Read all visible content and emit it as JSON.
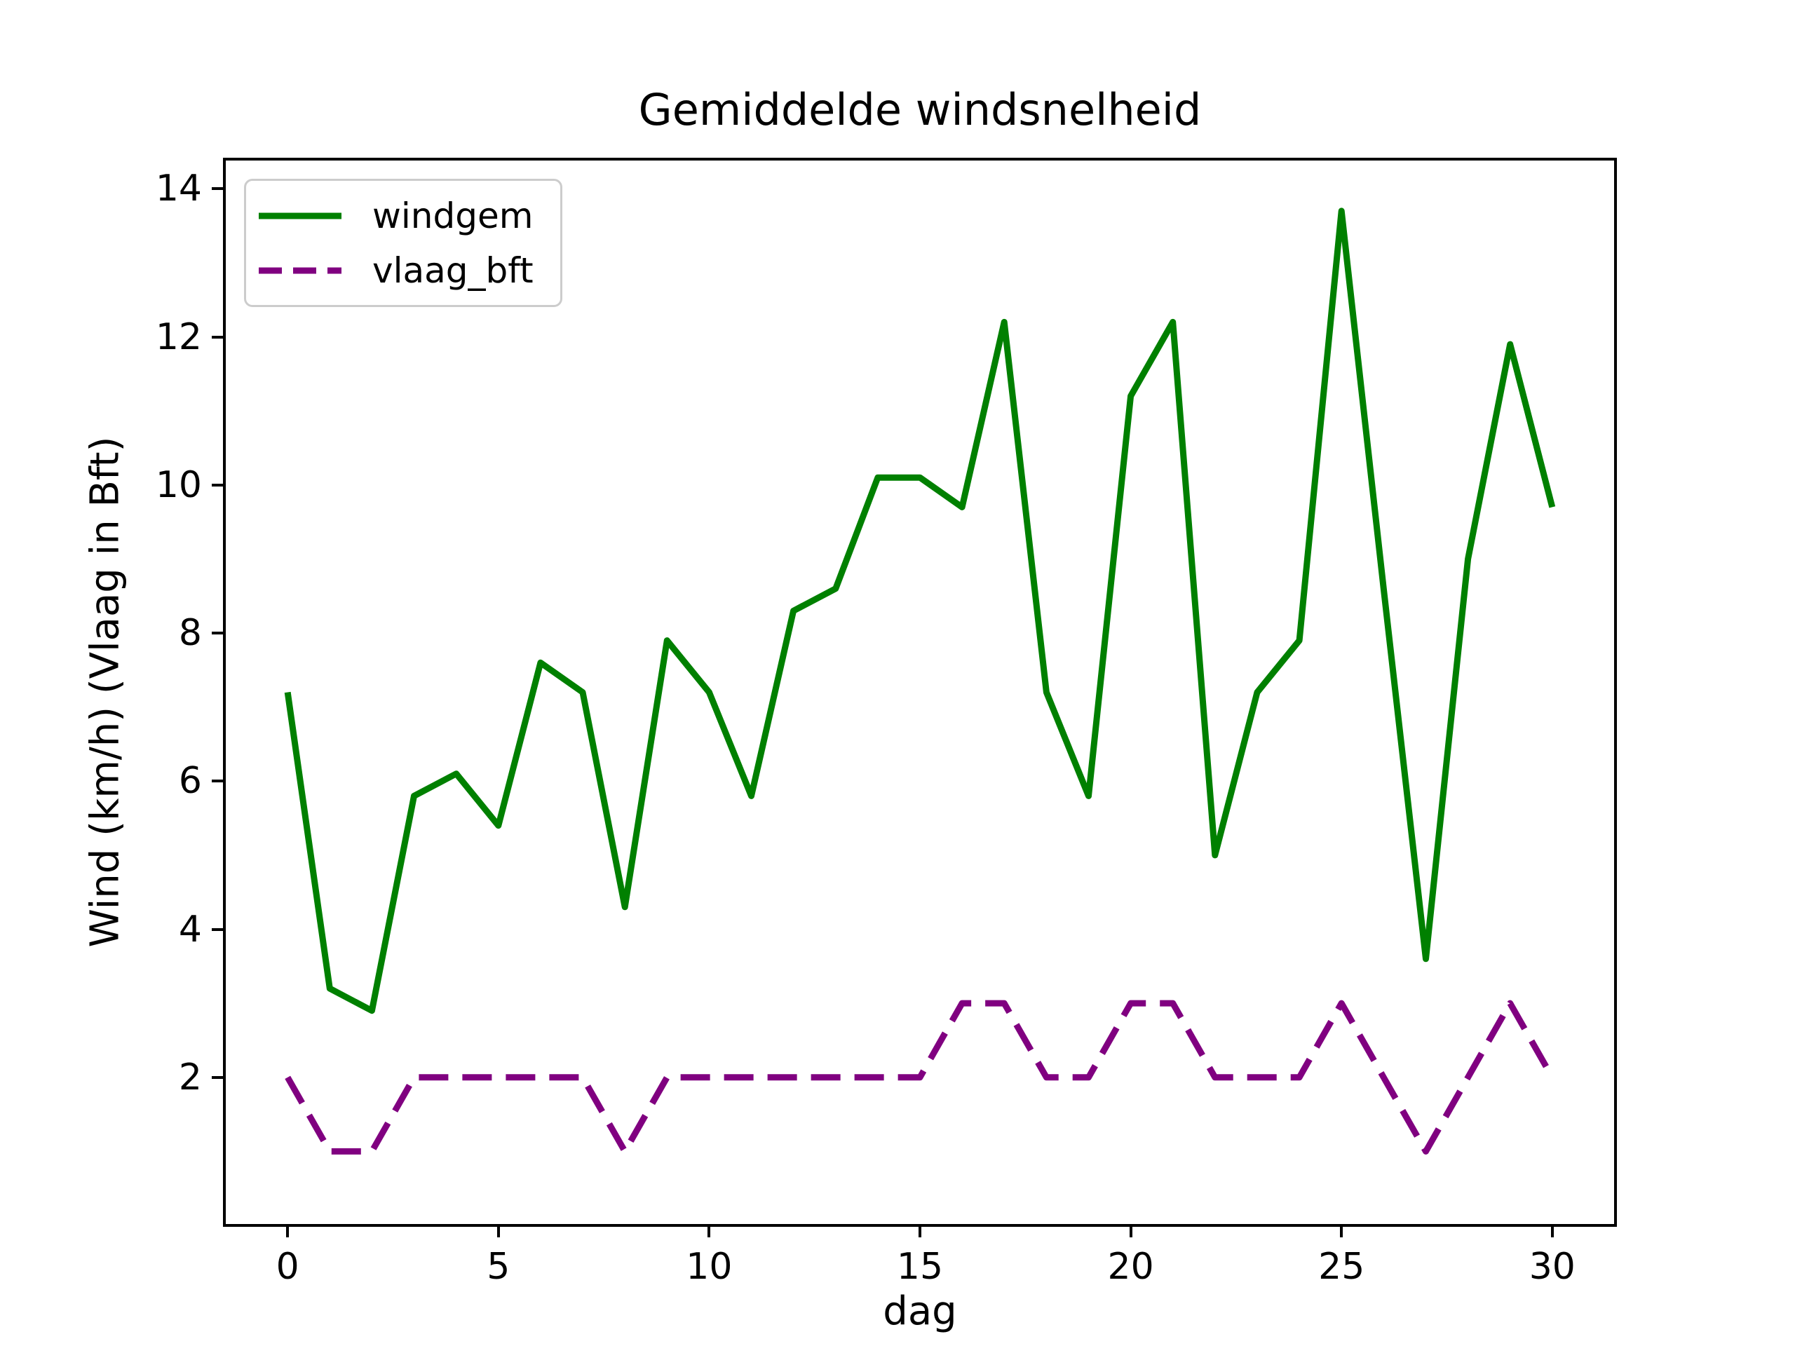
{
  "title": "Gemiddelde windsnelheid",
  "legend": {
    "items": [
      {
        "label": "windgem",
        "color": "#008000",
        "style": "solid"
      },
      {
        "label": "vlaag_bft",
        "color": "#800080",
        "style": "dashed"
      }
    ]
  },
  "axes": {
    "xlabel": "dag",
    "ylabel": "Wind (km/h) (Vlaag in Bft)",
    "x_ticks": [
      0,
      5,
      10,
      15,
      20,
      25,
      30
    ],
    "y_ticks": [
      2,
      4,
      6,
      8,
      10,
      12,
      14
    ],
    "xlim": [
      -1.5,
      31.5
    ],
    "ylim": [
      0,
      14.4
    ]
  },
  "chart_data": {
    "type": "line",
    "title": "Gemiddelde windsnelheid",
    "xlabel": "dag",
    "ylabel": "Wind (km/h) (Vlaag in Bft)",
    "xlim": [
      -1.5,
      31.5
    ],
    "ylim": [
      0,
      14.4
    ],
    "grid": false,
    "legend_position": "upper left",
    "x": [
      0,
      1,
      2,
      3,
      4,
      5,
      6,
      7,
      8,
      9,
      10,
      11,
      12,
      13,
      14,
      15,
      16,
      17,
      18,
      19,
      20,
      21,
      22,
      23,
      24,
      25,
      26,
      27,
      28,
      29,
      30
    ],
    "series": [
      {
        "name": "windgem",
        "color": "#008000",
        "style": "solid",
        "values": [
          7.2,
          3.2,
          2.9,
          5.8,
          6.1,
          5.4,
          7.6,
          7.2,
          4.3,
          7.9,
          7.2,
          5.8,
          8.3,
          8.6,
          10.1,
          10.1,
          9.7,
          12.2,
          7.2,
          5.8,
          11.2,
          12.2,
          5.0,
          7.2,
          7.9,
          13.7,
          8.6,
          3.6,
          9.0,
          11.9,
          9.7
        ]
      },
      {
        "name": "vlaag_bft",
        "color": "#800080",
        "style": "dashed",
        "values": [
          2,
          1,
          1,
          2,
          2,
          2,
          2,
          2,
          1,
          2,
          2,
          2,
          2,
          2,
          2,
          2,
          3,
          3,
          2,
          2,
          3,
          3,
          2,
          2,
          2,
          3,
          2,
          1,
          2,
          3,
          2
        ]
      }
    ]
  }
}
